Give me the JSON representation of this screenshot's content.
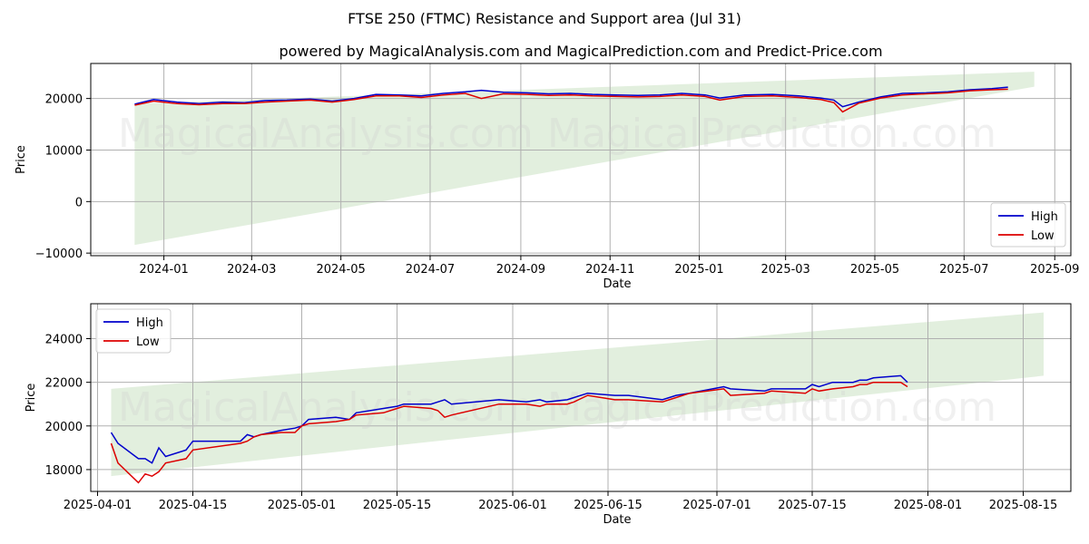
{
  "title": "FTSE 250 (FTMC) Resistance and Support area (Jul 31)",
  "subtitle": "powered by MagicalAnalysis.com and MagicalPrediction.com and Predict-Price.com",
  "watermarks": [
    "MagicalAnalysis.com",
    "MagicalPrediction.com"
  ],
  "colors": {
    "high": "#0000cc",
    "low": "#dd0000",
    "band": "#d8ead3",
    "grid": "#b0b0b0"
  },
  "chart_data": [
    {
      "type": "line",
      "xlabel": "Date",
      "ylabel": "Price",
      "xlim": [
        "2023-11-12",
        "2025-09-12"
      ],
      "ylim": [
        -10500,
        26800
      ],
      "xticks": [
        "2024-01",
        "2024-03",
        "2024-05",
        "2024-07",
        "2024-09",
        "2024-11",
        "2025-01",
        "2025-03",
        "2025-05",
        "2025-07",
        "2025-09"
      ],
      "yticks": [
        -10000,
        0,
        10000,
        20000
      ],
      "grid": true,
      "legend": "bottom-right",
      "band": {
        "x": [
          "2023-12-12",
          "2025-08-18"
        ],
        "upper": [
          19000,
          25200
        ],
        "lower": [
          -8400,
          22300
        ]
      },
      "series": [
        {
          "name": "High",
          "x": [
            "2023-12-12",
            "2023-12-25",
            "2024-01-10",
            "2024-01-25",
            "2024-02-10",
            "2024-02-25",
            "2024-03-10",
            "2024-03-25",
            "2024-04-10",
            "2024-04-25",
            "2024-05-10",
            "2024-05-25",
            "2024-06-10",
            "2024-06-25",
            "2024-07-10",
            "2024-07-25",
            "2024-08-05",
            "2024-08-20",
            "2024-09-05",
            "2024-09-20",
            "2024-10-05",
            "2024-10-20",
            "2024-11-05",
            "2024-11-20",
            "2024-12-05",
            "2024-12-20",
            "2025-01-05",
            "2025-01-15",
            "2025-02-01",
            "2025-02-20",
            "2025-03-10",
            "2025-03-25",
            "2025-04-03",
            "2025-04-09",
            "2025-04-20",
            "2025-05-05",
            "2025-05-20",
            "2025-06-05",
            "2025-06-20",
            "2025-07-05",
            "2025-07-20",
            "2025-07-31"
          ],
          "values": [
            18900,
            19800,
            19300,
            19000,
            19300,
            19200,
            19600,
            19700,
            19900,
            19500,
            20000,
            20800,
            20700,
            20500,
            21000,
            21300,
            21600,
            21200,
            21100,
            20900,
            21000,
            20800,
            20700,
            20600,
            20700,
            21000,
            20700,
            20100,
            20700,
            20800,
            20500,
            20100,
            19700,
            18400,
            19300,
            20300,
            21000,
            21100,
            21300,
            21700,
            21900,
            22200
          ]
        },
        {
          "name": "Low",
          "x": [
            "2023-12-12",
            "2023-12-25",
            "2024-01-10",
            "2024-01-25",
            "2024-02-10",
            "2024-02-25",
            "2024-03-10",
            "2024-03-25",
            "2024-04-10",
            "2024-04-25",
            "2024-05-10",
            "2024-05-25",
            "2024-06-10",
            "2024-06-25",
            "2024-07-10",
            "2024-07-25",
            "2024-08-05",
            "2024-08-20",
            "2024-09-05",
            "2024-09-20",
            "2024-10-05",
            "2024-10-20",
            "2024-11-05",
            "2024-11-20",
            "2024-12-05",
            "2024-12-20",
            "2025-01-05",
            "2025-01-15",
            "2025-02-01",
            "2025-02-20",
            "2025-03-10",
            "2025-03-25",
            "2025-04-03",
            "2025-04-09",
            "2025-04-20",
            "2025-05-05",
            "2025-05-20",
            "2025-06-05",
            "2025-06-20",
            "2025-07-05",
            "2025-07-20",
            "2025-07-31"
          ],
          "values": [
            18700,
            19500,
            19000,
            18800,
            19000,
            19000,
            19300,
            19500,
            19700,
            19300,
            19800,
            20500,
            20500,
            20200,
            20700,
            21000,
            20000,
            20900,
            20800,
            20600,
            20700,
            20500,
            20400,
            20300,
            20400,
            20700,
            20400,
            19700,
            20400,
            20500,
            20200,
            19800,
            19200,
            17400,
            19100,
            20100,
            20700,
            20900,
            21100,
            21500,
            21700,
            21800
          ]
        }
      ]
    },
    {
      "type": "line",
      "xlabel": "Date",
      "ylabel": "Price",
      "xlim": [
        "2025-03-31",
        "2025-08-22"
      ],
      "ylim": [
        17000,
        25600
      ],
      "xticks": [
        "2025-04-01",
        "2025-04-15",
        "2025-05-01",
        "2025-05-15",
        "2025-06-01",
        "2025-06-15",
        "2025-07-01",
        "2025-07-15",
        "2025-08-01",
        "2025-08-15"
      ],
      "yticks": [
        18000,
        20000,
        22000,
        24000
      ],
      "grid": true,
      "legend": "top-left",
      "band": {
        "x": [
          "2025-04-03",
          "2025-08-18"
        ],
        "upper": [
          21700,
          25200
        ],
        "lower": [
          17700,
          22300
        ]
      },
      "series": [
        {
          "name": "High",
          "x": [
            "2025-04-03",
            "2025-04-04",
            "2025-04-07",
            "2025-04-08",
            "2025-04-09",
            "2025-04-10",
            "2025-04-11",
            "2025-04-14",
            "2025-04-15",
            "2025-04-22",
            "2025-04-23",
            "2025-04-24",
            "2025-04-25",
            "2025-04-28",
            "2025-04-30",
            "2025-05-01",
            "2025-05-02",
            "2025-05-06",
            "2025-05-08",
            "2025-05-09",
            "2025-05-13",
            "2025-05-15",
            "2025-05-16",
            "2025-05-20",
            "2025-05-21",
            "2025-05-22",
            "2025-05-23",
            "2025-05-30",
            "2025-06-03",
            "2025-06-05",
            "2025-06-06",
            "2025-06-09",
            "2025-06-10",
            "2025-06-12",
            "2025-06-16",
            "2025-06-18",
            "2025-06-23",
            "2025-06-24",
            "2025-06-25",
            "2025-06-27",
            "2025-07-02",
            "2025-07-03",
            "2025-07-08",
            "2025-07-09",
            "2025-07-14",
            "2025-07-15",
            "2025-07-16",
            "2025-07-18",
            "2025-07-21",
            "2025-07-22",
            "2025-07-23",
            "2025-07-24",
            "2025-07-28",
            "2025-07-29"
          ],
          "values": [
            19700,
            19200,
            18500,
            18500,
            18300,
            19000,
            18600,
            18900,
            19300,
            19300,
            19600,
            19500,
            19600,
            19800,
            19900,
            20000,
            20300,
            20400,
            20300,
            20600,
            20800,
            20900,
            21000,
            21000,
            21100,
            21200,
            21000,
            21200,
            21100,
            21200,
            21100,
            21200,
            21300,
            21500,
            21400,
            21400,
            21200,
            21300,
            21400,
            21500,
            21800,
            21700,
            21600,
            21700,
            21700,
            21900,
            21800,
            22000,
            22000,
            22100,
            22100,
            22200,
            22300,
            22000
          ]
        },
        {
          "name": "Low",
          "x": [
            "2025-04-03",
            "2025-04-04",
            "2025-04-07",
            "2025-04-08",
            "2025-04-09",
            "2025-04-10",
            "2025-04-11",
            "2025-04-14",
            "2025-04-15",
            "2025-04-22",
            "2025-04-23",
            "2025-04-24",
            "2025-04-25",
            "2025-04-28",
            "2025-04-30",
            "2025-05-01",
            "2025-05-02",
            "2025-05-06",
            "2025-05-08",
            "2025-05-09",
            "2025-05-13",
            "2025-05-15",
            "2025-05-16",
            "2025-05-20",
            "2025-05-21",
            "2025-05-22",
            "2025-05-23",
            "2025-05-30",
            "2025-06-03",
            "2025-06-05",
            "2025-06-06",
            "2025-06-09",
            "2025-06-10",
            "2025-06-12",
            "2025-06-16",
            "2025-06-18",
            "2025-06-23",
            "2025-06-24",
            "2025-06-25",
            "2025-06-27",
            "2025-07-02",
            "2025-07-03",
            "2025-07-08",
            "2025-07-09",
            "2025-07-14",
            "2025-07-15",
            "2025-07-16",
            "2025-07-18",
            "2025-07-21",
            "2025-07-22",
            "2025-07-23",
            "2025-07-24",
            "2025-07-28",
            "2025-07-29"
          ],
          "values": [
            19200,
            18300,
            17400,
            17800,
            17700,
            17900,
            18300,
            18500,
            18900,
            19200,
            19300,
            19500,
            19600,
            19700,
            19700,
            20000,
            20100,
            20200,
            20300,
            20500,
            20600,
            20800,
            20900,
            20800,
            20700,
            20400,
            20500,
            21000,
            21000,
            20900,
            21000,
            21000,
            21100,
            21400,
            21200,
            21200,
            21100,
            21200,
            21300,
            21500,
            21700,
            21400,
            21500,
            21600,
            21500,
            21700,
            21600,
            21700,
            21800,
            21900,
            21900,
            22000,
            22000,
            21800
          ]
        }
      ]
    }
  ]
}
